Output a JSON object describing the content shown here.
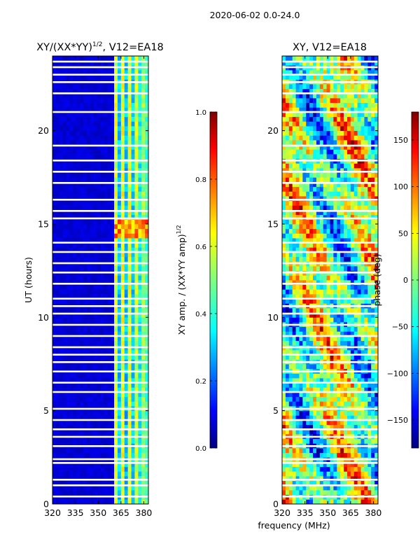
{
  "suptitle": "2020-06-02 0.0-24.0",
  "chart_data": [
    {
      "type": "heatmap",
      "title_base": "XY/(XX*YY)",
      "title_sup": "1/2",
      "title_suffix": ", V12=EA18",
      "xlabel": "",
      "ylabel": "UT (hours)",
      "xlim": [
        320,
        383
      ],
      "ylim": [
        0,
        24
      ],
      "xticks": [
        320,
        335,
        350,
        365,
        380
      ],
      "yticks": [
        0,
        5,
        10,
        15,
        20
      ],
      "colormap": "jet",
      "colorbar": {
        "label_base": "XY amp. / (XX*YY amp)",
        "label_sup": "1/2",
        "range": [
          0.0,
          1.0
        ],
        "ticks": [
          "0.0",
          "0.2",
          "0.4",
          "0.6",
          "0.8",
          "1.0"
        ]
      }
    },
    {
      "type": "heatmap",
      "title": "XY, V12=EA18",
      "xlabel": "frequency (MHz)",
      "ylabel": "",
      "xlim": [
        320,
        383
      ],
      "ylim": [
        0,
        24
      ],
      "xticks": [
        320,
        335,
        350,
        365,
        380
      ],
      "yticks": [
        0,
        5,
        10,
        15,
        20
      ],
      "colormap": "jet",
      "colorbar": {
        "label": "phase (deg)",
        "range": [
          -180,
          180
        ],
        "ticks": [
          "150",
          "100",
          "50",
          "0",
          "−50",
          "−100",
          "−150"
        ]
      }
    }
  ],
  "gaps_hours": [
    0.4,
    1.0,
    1.3,
    2.2,
    2.4,
    3.1,
    3.6,
    4.0,
    4.5,
    5.1,
    6.0,
    6.5,
    7.1,
    7.6,
    8.0,
    8.4,
    9.0,
    9.6,
    10.2,
    10.6,
    11.0,
    11.8,
    12.4,
    12.9,
    13.5,
    14.0,
    15.3,
    15.7,
    16.3,
    17.2,
    17.8,
    18.4,
    19.2,
    21.0,
    22.0,
    22.6,
    23.0,
    23.4,
    23.7
  ]
}
